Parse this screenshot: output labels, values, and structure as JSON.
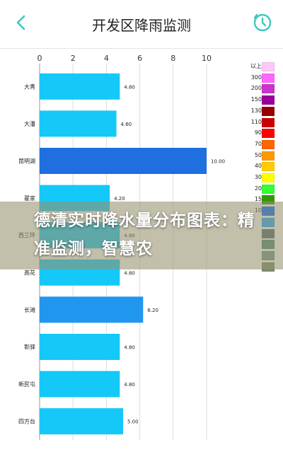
{
  "header": {
    "title": "开发区降雨监测",
    "accent": "#3cc8c0"
  },
  "overlay": {
    "text": "德清实时降水量分布图表：精准监测，智慧农"
  },
  "legend": {
    "items": [
      {
        "label": "以上",
        "color": "#ffc8f6"
      },
      {
        "label": "300",
        "color": "#ff66ff"
      },
      {
        "label": "200",
        "color": "#cc33cc"
      },
      {
        "label": "150",
        "color": "#990099"
      },
      {
        "label": "130",
        "color": "#990000"
      },
      {
        "label": "110",
        "color": "#cc0000"
      },
      {
        "label": "90",
        "color": "#ff0000"
      },
      {
        "label": "70",
        "color": "#ff6600"
      },
      {
        "label": "50",
        "color": "#ff9900"
      },
      {
        "label": "40",
        "color": "#ffcc00"
      },
      {
        "label": "30",
        "color": "#ffff00"
      },
      {
        "label": "20",
        "color": "#33ff33"
      },
      {
        "label": "15",
        "color": "#339900"
      },
      {
        "label": "10",
        "color": "#0066ff"
      },
      {
        "label": "",
        "color": "#22aaff"
      },
      {
        "label": "",
        "color": "#4d6b6b"
      },
      {
        "label": "",
        "color": "#4d8b7b"
      },
      {
        "label": "",
        "color": "#6b9b8b"
      },
      {
        "label": "",
        "color": "#7b8b6b"
      }
    ]
  },
  "chart_data": {
    "type": "bar",
    "orientation": "horizontal",
    "categories": [
      "大青",
      "大潘",
      "昆明湖",
      "翟家",
      "西三环",
      "高花",
      "长滩",
      "彰驿",
      "新民屯",
      "四方台"
    ],
    "values": [
      4.8,
      4.6,
      10.0,
      4.2,
      4.8,
      4.8,
      6.2,
      4.8,
      4.8,
      5.0
    ],
    "value_labels": [
      "4.80",
      "4.60",
      "10.00",
      "4.20",
      "4.80",
      "4.80",
      "6.20",
      "4.80",
      "4.80",
      "5.00"
    ],
    "colors": [
      "#14c8f8",
      "#14c8f8",
      "#1f6fe0",
      "#14c8f8",
      "#14c8f8",
      "#14c8f8",
      "#2196ee",
      "#14c8f8",
      "#14c8f8",
      "#14c8f8"
    ],
    "xlim": [
      0,
      10
    ],
    "x_ticks": [
      0,
      2,
      4,
      6,
      8,
      10
    ],
    "grid": true
  }
}
